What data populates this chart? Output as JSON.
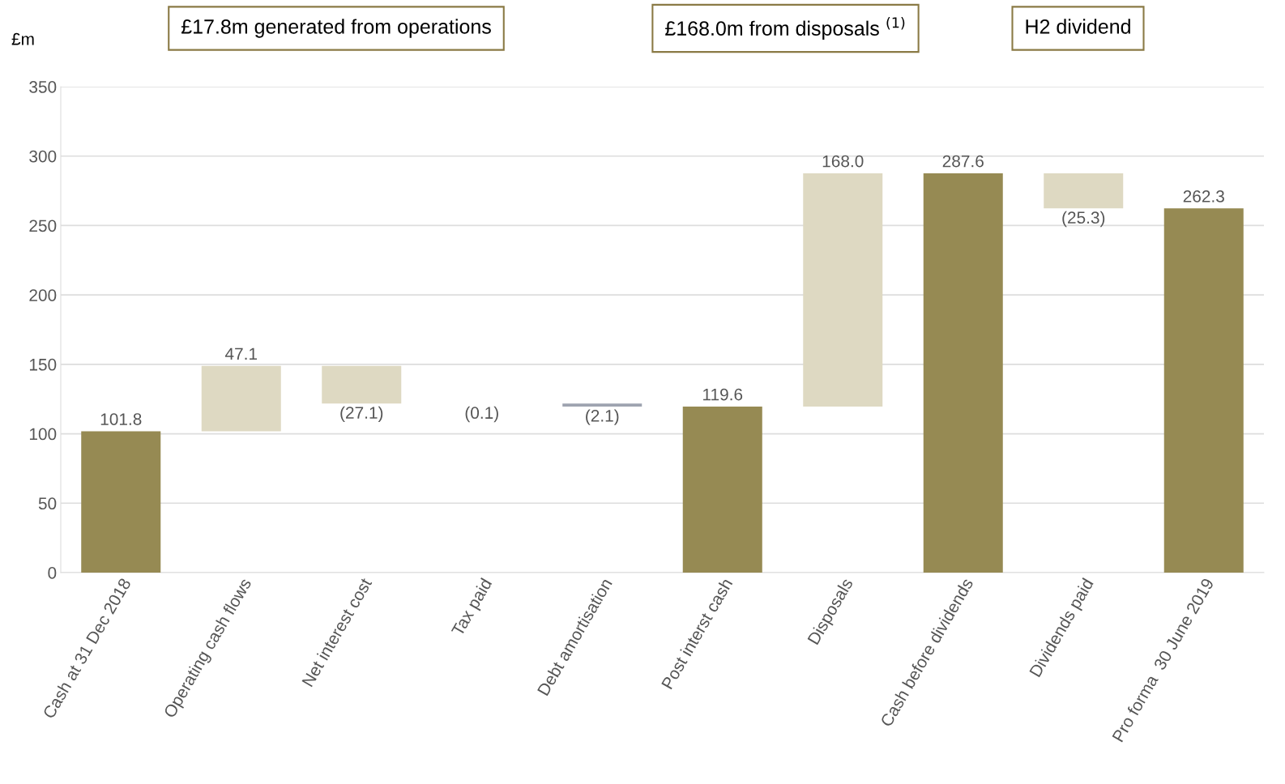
{
  "chart_data": {
    "type": "bar",
    "ylabel": "£m",
    "categories": [
      "Cash at 31 Dec 2018",
      "Operating cash flows",
      "Net interest cost",
      "Tax paid",
      "Debt amortisation",
      "Post interst cash",
      "Disposals",
      "Cash before dividends",
      "Dividends paid",
      "Pro forma  30 June 2019"
    ],
    "values": [
      101.8,
      47.1,
      -27.1,
      -0.1,
      -2.1,
      119.6,
      168.0,
      287.6,
      -25.3,
      262.3
    ],
    "base": [
      0,
      101.8,
      148.9,
      121.8,
      121.7,
      0,
      119.6,
      0,
      287.6,
      0
    ],
    "colors": [
      "#968a53",
      "#ded9c2",
      "#ded9c2",
      "#ded9c2",
      "#9ea3b0",
      "#968a53",
      "#ded9c2",
      "#968a53",
      "#ded9c2",
      "#968a53"
    ],
    "value_labels": [
      "101.8",
      "47.1",
      "(27.1)",
      "(0.1)",
      "(2.1)",
      "119.6",
      "168.0",
      "287.6",
      "(25.3)",
      "262.3"
    ],
    "ylim": [
      0,
      350
    ],
    "yticks": [
      0,
      50,
      100,
      150,
      200,
      250,
      300,
      350
    ],
    "grid": "y",
    "annotations": [
      "£17.8m generated from operations",
      "£168.0m from disposals $^{(1)}$",
      "H2 dividend"
    ]
  }
}
